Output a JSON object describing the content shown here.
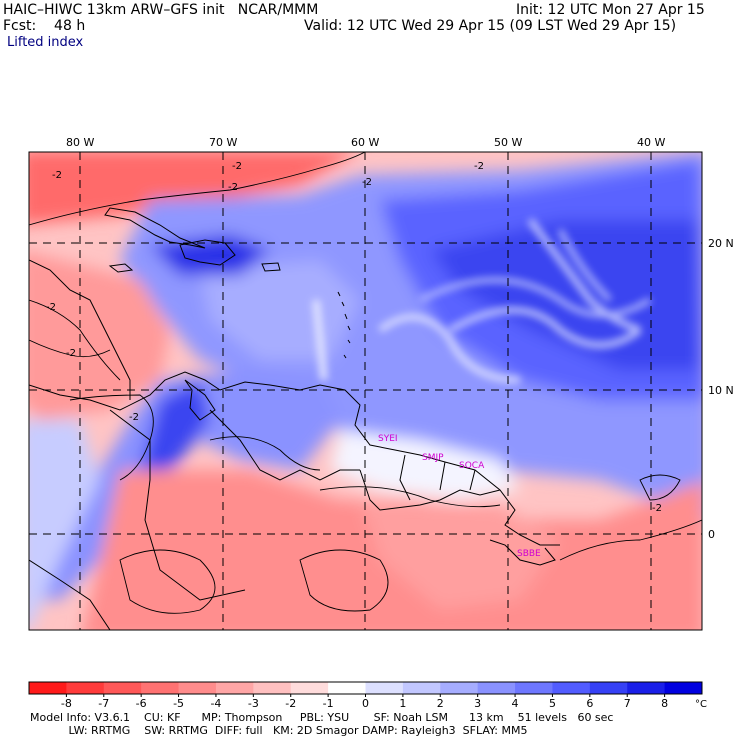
{
  "header": {
    "model_line": "HAIC–HIWC 13km ARW–GFS init   NCAR/MMM",
    "init_line": "Init: 12 UTC Mon 27 Apr 15",
    "fcst_line": "Fcst:    48 h",
    "valid_line": "Valid: 12 UTC Wed 29 Apr 15 (09 LST Wed 29 Apr 15)",
    "field_name": "Lifted index"
  },
  "map": {
    "lon_labels": [
      "80 W",
      "70 W",
      "60 W",
      "50 W",
      "40 W"
    ],
    "lat_labels": [
      "20 N",
      "10 N",
      "0"
    ],
    "contour_labels": [
      "-2",
      "-2",
      "-2",
      "-2",
      "-2",
      "-2",
      "-2",
      "-2",
      "-2"
    ],
    "sites": [
      "SYEI",
      "SMJP",
      "SOCA",
      "SBBE"
    ],
    "colors": {
      "negative_max": "#ff0000",
      "positive_max": "#0000e0",
      "neutral": "#ffffff"
    }
  },
  "legend": {
    "ticks": [
      "-8",
      "-7",
      "-6",
      "-5",
      "-4",
      "-3",
      "-2",
      "-1",
      "0",
      "1",
      "2",
      "3",
      "4",
      "5",
      "6",
      "7",
      "8"
    ],
    "unit": "°C",
    "colors": [
      "#ff1a1a",
      "#ff3b3b",
      "#ff5858",
      "#ff7272",
      "#ff8c8c",
      "#ffa6a6",
      "#ffc0c0",
      "#ffdcdc",
      "#ffffff",
      "#dde0ff",
      "#c2c7ff",
      "#a6adff",
      "#8a92ff",
      "#6e77ff",
      "#525cff",
      "#3641f5",
      "#1a1fe8",
      "#0000e0"
    ]
  },
  "footer": {
    "line1": "Model Info: V3.6.1    CU: KF      MP: Thompson     PBL: YSU       SF: Noah LSM      13 km    51 levels   60 sec",
    "line2": "           LW: RRTMG    SW: RRTMG  DIFF: full   KM: 2D Smagor DAMP: Rayleigh3  SFLAY: MM5"
  }
}
